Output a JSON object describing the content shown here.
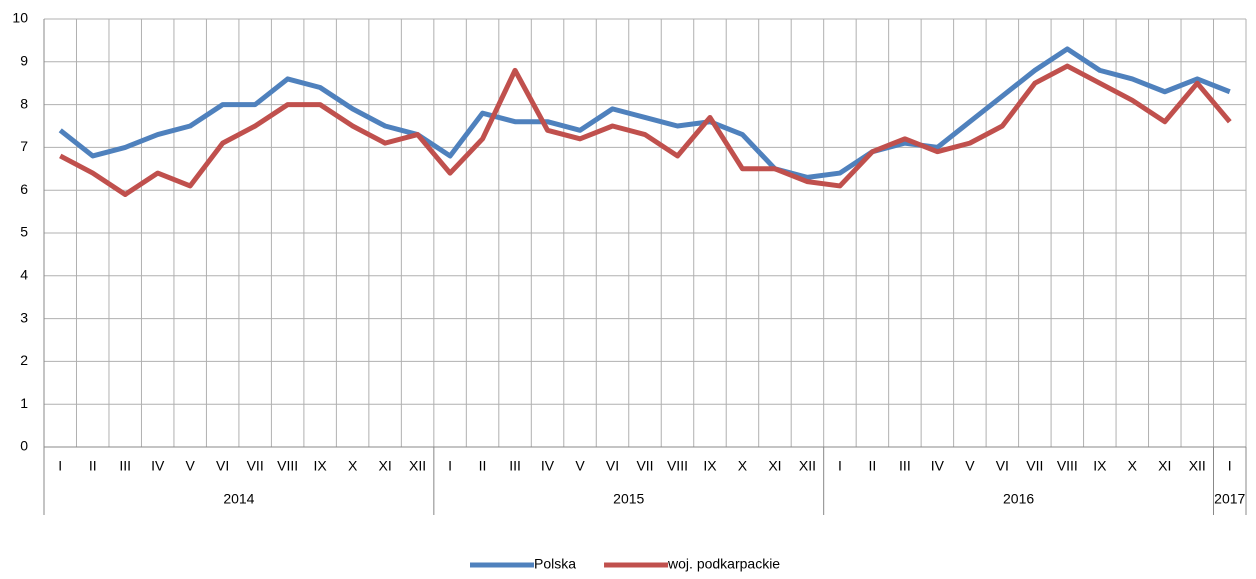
{
  "chart_data": {
    "type": "line",
    "categories": [
      "I",
      "II",
      "III",
      "IV",
      "V",
      "VI",
      "VII",
      "VIII",
      "IX",
      "X",
      "XI",
      "XII",
      "I",
      "II",
      "III",
      "IV",
      "V",
      "VI",
      "VII",
      "VIII",
      "IX",
      "X",
      "XI",
      "XII",
      "I",
      "II",
      "III",
      "IV",
      "V",
      "VI",
      "VII",
      "VIII",
      "IX",
      "X",
      "XI",
      "XII",
      "I"
    ],
    "category_groups": [
      {
        "label": "2014",
        "span": 12
      },
      {
        "label": "2015",
        "span": 12
      },
      {
        "label": "2016",
        "span": 12
      },
      {
        "label": "2017",
        "span": 1
      }
    ],
    "series": [
      {
        "name": "Polska",
        "color": "#4f81bd",
        "values": [
          7.4,
          6.8,
          7.0,
          7.3,
          7.5,
          8.0,
          8.0,
          8.6,
          8.4,
          7.9,
          7.5,
          7.3,
          6.8,
          7.8,
          7.6,
          7.6,
          7.4,
          7.9,
          7.7,
          7.5,
          7.6,
          7.3,
          6.5,
          6.3,
          6.4,
          6.9,
          7.1,
          7.0,
          7.6,
          8.2,
          8.8,
          9.3,
          8.8,
          8.6,
          8.3,
          8.6,
          8.3
        ]
      },
      {
        "name": "woj. podkarpackie",
        "color": "#c0504d",
        "values": [
          6.8,
          6.4,
          5.9,
          6.4,
          6.1,
          7.1,
          7.5,
          8.0,
          8.0,
          7.5,
          7.1,
          7.3,
          6.4,
          7.2,
          8.8,
          7.4,
          7.2,
          7.5,
          7.3,
          6.8,
          7.7,
          6.5,
          6.5,
          6.2,
          6.1,
          6.9,
          7.2,
          6.9,
          7.1,
          7.5,
          8.5,
          8.9,
          8.5,
          8.1,
          7.6,
          8.5,
          7.6
        ]
      }
    ],
    "ylim": [
      0,
      10
    ],
    "yticks": [
      0,
      1,
      2,
      3,
      4,
      5,
      6,
      7,
      8,
      9,
      10
    ],
    "grid": true,
    "legend": "bottom"
  }
}
